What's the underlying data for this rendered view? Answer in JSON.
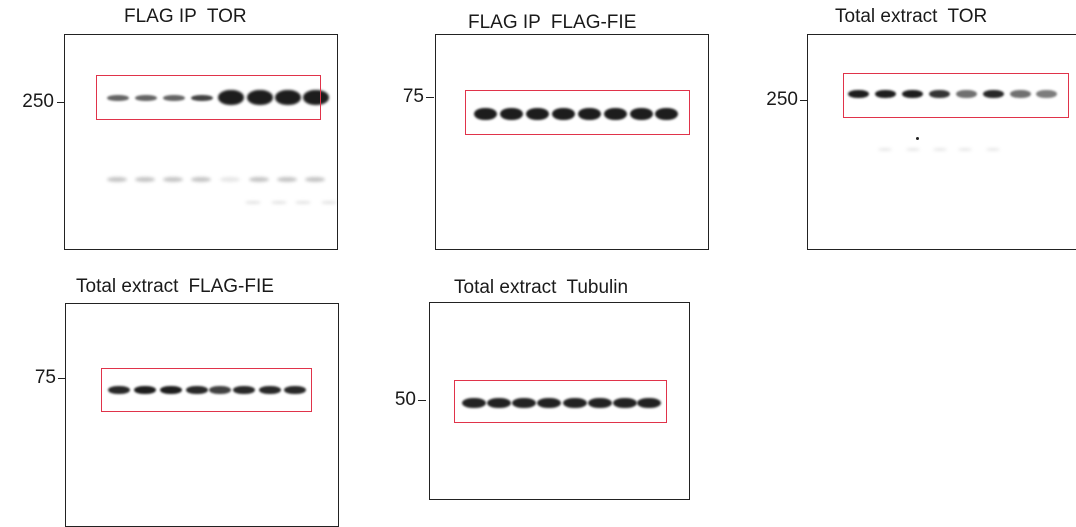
{
  "panels": [
    {
      "id": "flag-ip-tor",
      "title_left": "FLAG IP",
      "title_right": "TOR",
      "marker": "250"
    },
    {
      "id": "flag-ip-flag-fie",
      "title_left": "FLAG IP",
      "title_right": "FLAG-FIE",
      "marker": "75"
    },
    {
      "id": "total-extract-tor",
      "title_left": "Total extract",
      "title_right": "TOR",
      "marker": "250"
    },
    {
      "id": "total-extract-flag-fie",
      "title_left": "Total extract",
      "title_right": "FLAG-FIE",
      "marker": "75"
    },
    {
      "id": "total-extract-tubulin",
      "title_left": "Total extract",
      "title_right": "Tubulin",
      "marker": "50"
    }
  ],
  "colors": {
    "band": "#111111",
    "highlight_box": "#e0334a",
    "frame": "#222222"
  }
}
